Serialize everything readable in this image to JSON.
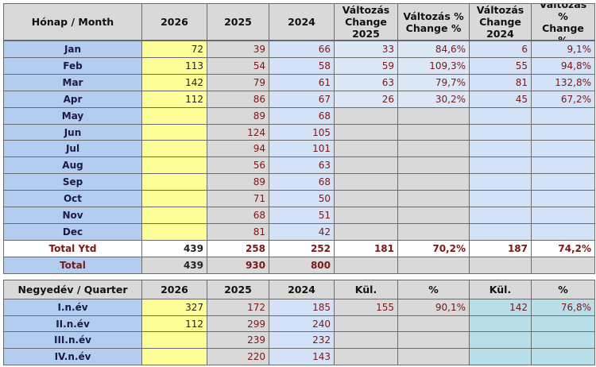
{
  "monthly": {
    "header": [
      "Hónap / Month",
      "2026",
      "2025",
      "2024",
      "Változás\nChange\n2025",
      "Változás %\nChange %",
      "Változás\nChange\n2024",
      "Változás\n%\nChange\n%"
    ],
    "rows": [
      [
        "Jan",
        72,
        39,
        66,
        33,
        "84,6%",
        6,
        "9,1%"
      ],
      [
        "Feb",
        113,
        54,
        58,
        59,
        "109,3%",
        55,
        "94,8%"
      ],
      [
        "Mar",
        142,
        79,
        61,
        63,
        "79,7%",
        81,
        "132,8%"
      ],
      [
        "Apr",
        112,
        86,
        67,
        26,
        "30,2%",
        45,
        "67,2%"
      ],
      [
        "May",
        null,
        89,
        68
      ],
      [
        "Jun",
        null,
        124,
        105
      ],
      [
        "Jul",
        null,
        94,
        101
      ],
      [
        "Aug",
        null,
        56,
        63
      ],
      [
        "Sep",
        null,
        89,
        68
      ],
      [
        "Oct",
        null,
        71,
        50
      ],
      [
        "Nov",
        null,
        68,
        51
      ],
      [
        "Dec",
        null,
        81,
        42
      ],
      [
        "Total Ytd",
        439,
        258,
        252,
        181,
        "70,2%",
        187,
        "74,2%"
      ],
      [
        "Total",
        439,
        930,
        800
      ]
    ]
  },
  "quarterly": {
    "header": [
      "Negyedév / Quarter",
      "2026",
      "2025",
      "2024",
      "Kül.",
      "%",
      "Kül.",
      "%"
    ],
    "rows": [
      [
        "I.n.év",
        327,
        172,
        185,
        155,
        "90,1%",
        142,
        "76,8%"
      ],
      [
        "II.n.év",
        112,
        299,
        240
      ],
      [
        "III.n.év",
        null,
        239,
        232
      ],
      [
        "IV.n.év",
        null,
        220,
        143
      ]
    ]
  }
}
